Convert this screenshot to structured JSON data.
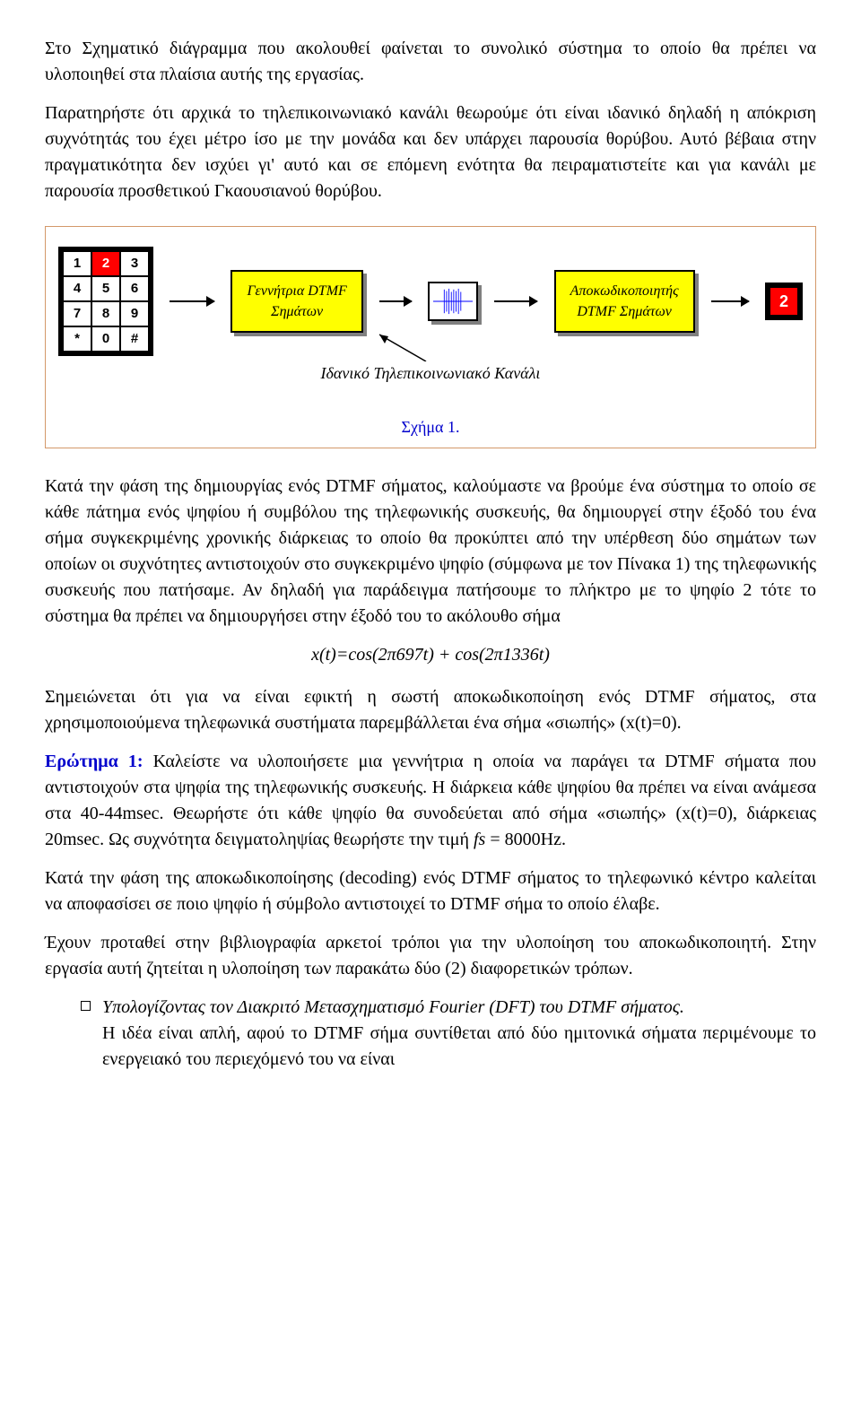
{
  "para1": "Στο Σχηματικό διάγραμμα που ακολουθεί φαίνεται το συνολικό σύστημα το οποίο θα πρέπει να υλοποιηθεί στα πλαίσια αυτής της εργασίας.",
  "para2": "Παρατηρήστε ότι αρχικά το τηλεπικοινωνιακό κανάλι θεωρούμε ότι είναι ιδανικό δηλαδή η απόκριση συχνότητάς του έχει μέτρο ίσο με την μονάδα και δεν υπάρχει παρουσία θορύβου. Αυτό βέβαια στην πραγματικότητα δεν ισχύει γι' αυτό και σε επόμενη ενότητα θα πειραματιστείτε και για κανάλι με παρουσία προσθετικού Γκαουσιανού θορύβου.",
  "keypad": {
    "rows": [
      [
        "1",
        "2",
        "3"
      ],
      [
        "4",
        "5",
        "6"
      ],
      [
        "7",
        "8",
        "9"
      ],
      [
        "*",
        "0",
        "#"
      ]
    ],
    "pressed_row": 0,
    "pressed_col": 1
  },
  "block_gen_l1": "Γεννήτρια DTMF",
  "block_gen_l2": "Σημάτων",
  "block_dec_l1": "Αποκωδικοποιητής",
  "block_dec_l2": "DTMF  Σημάτων",
  "channel_label": "Ιδανικό Τηλεπικοινωνιακό Κανάλι",
  "out_digit": "2",
  "fig_caption": "Σχήμα 1.",
  "para3": "Κατά την φάση της δημιουργίας ενός DTMF σήματος, καλούμαστε να βρούμε ένα σύστημα το οποίο σε κάθε πάτημα ενός ψηφίου ή συμβόλου της τηλεφωνικής συσκευής, θα δημιουργεί στην έξοδό του ένα σήμα συγκεκριμένης χρονικής διάρκειας το οποίο θα προκύπτει από την υπέρθεση δύο σημάτων των οποίων οι συχνότητες αντιστοιχούν στο συγκεκριμένο ψηφίο (σύμφωνα με τον Πίνακα 1) της τηλεφωνικής συσκευής που πατήσαμε. Αν δηλαδή για παράδειγμα πατήσουμε το πλήκτρο με το ψηφίο 2 τότε το σύστημα θα πρέπει να δημιουργήσει στην έξοδό του το ακόλουθο σήμα",
  "formula": "x(t)=cos(2π697t) + cos(2π1336t)",
  "para4": "Σημειώνεται ότι για να είναι εφικτή η σωστή αποκωδικοποίηση ενός DTMF σήματος, στα χρησιμοποιούμενα τηλεφωνικά συστήματα παρεμβάλλεται ένα σήμα «σιωπής» (x(t)=0).",
  "q1_label": "Ερώτημα 1:",
  "q1_text": " Καλείστε να υλοποιήσετε μια γεννήτρια η οποία να παράγει τα DTMF σήματα που αντιστοιχούν στα ψηφία της τηλεφωνικής συσκευής. Η διάρκεια κάθε ψηφίου θα πρέπει να είναι ανάμεσα στα 40-44msec. Θεωρήστε ότι κάθε ψηφίο θα συνοδεύεται από σήμα «σιωπής» (x(t)=0), διάρκειας 20msec. Ως συχνότητα δειγματοληψίας θεωρήστε την τιμή ",
  "q1_fs": "fs",
  "q1_eq": " = 8000Hz.",
  "para5": "Κατά την φάση της αποκωδικοποίησης (decoding) ενός DTMF σήματος το τηλεφωνικό κέντρο καλείται  να αποφασίσει σε ποιο ψηφίο ή σύμβολο αντιστοιχεί το DTMF σήμα το οποίο έλαβε.",
  "para6": "Έχουν προταθεί στην βιβλιογραφία αρκετοί τρόποι για την υλοποίηση του αποκωδικοποιητή. Στην εργασία αυτή ζητείται η υλοποίηση των παρακάτω δύο (2) διαφορετικών τρόπων.",
  "bullet1_a": "Υπολογίζοντας τον Διακριτό Μετασχηματισμό Fourier (DFT) του DTMF σήματος.",
  "bullet1_b": "Η ιδέα είναι απλή, αφού το DTMF σήμα συντίθεται από δύο ημιτονικά σήματα περιμένουμε το ενεργειακό του περιεχόμενό του να είναι",
  "colors": {
    "figure_border": "#d4986a",
    "caption": "#0000cc",
    "qlabel": "#0000cc",
    "pressed_bg": "#ff0000",
    "block_fill": "#ffff00"
  }
}
